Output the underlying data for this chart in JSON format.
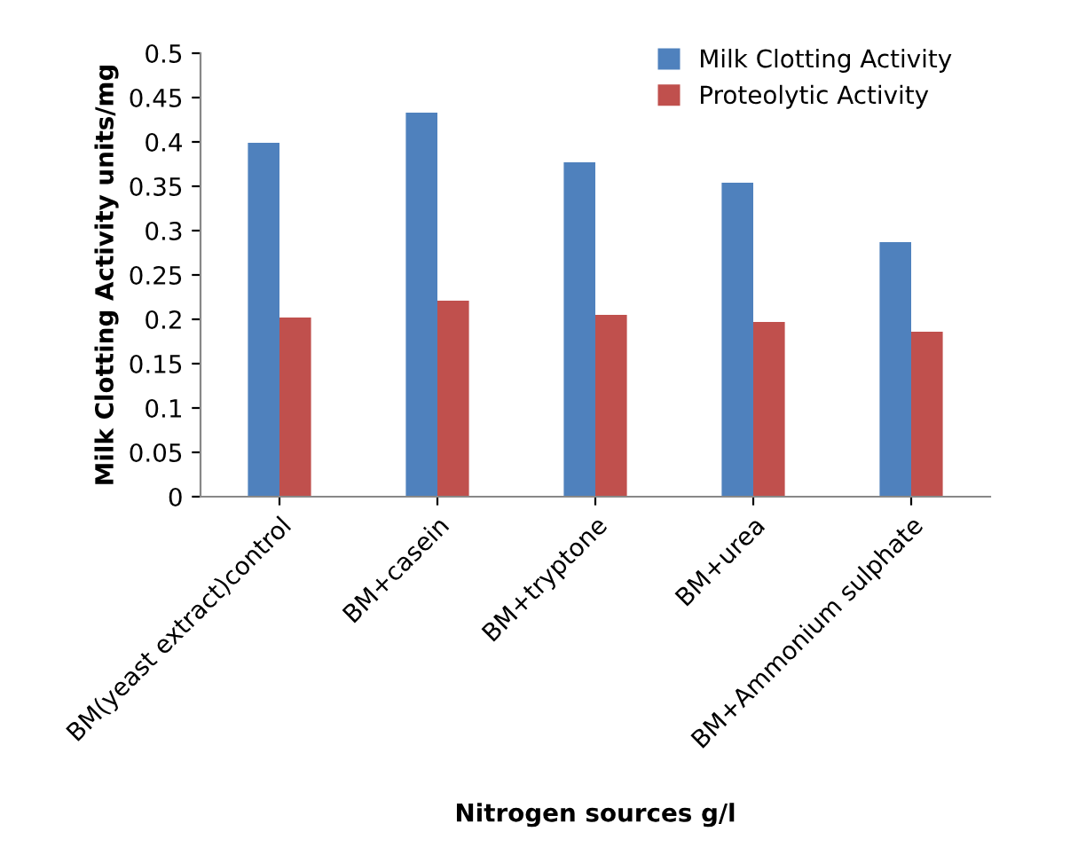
{
  "chart_data": {
    "type": "bar",
    "xlabel": "Nitrogen sources g/l",
    "ylabel": "Milk Clotting Activity units/mg",
    "categories": [
      "BM(yeast extract)control",
      "BM+casein",
      "BM+tryptone",
      "BM+urea",
      "BM+Ammonium sulphate"
    ],
    "series": [
      {
        "name": "Milk Clotting Activity",
        "color": "#4f81bd",
        "values": [
          0.399,
          0.433,
          0.377,
          0.354,
          0.287
        ]
      },
      {
        "name": "Proteolytic Activity",
        "color": "#c0504d",
        "values": [
          0.202,
          0.221,
          0.205,
          0.197,
          0.186
        ]
      }
    ],
    "ylim": [
      0,
      0.5
    ],
    "yticks": [
      0,
      0.05,
      0.1,
      0.15,
      0.2,
      0.25,
      0.3,
      0.35,
      0.4,
      0.45,
      0.5
    ],
    "grid": false,
    "legend": "top right"
  }
}
